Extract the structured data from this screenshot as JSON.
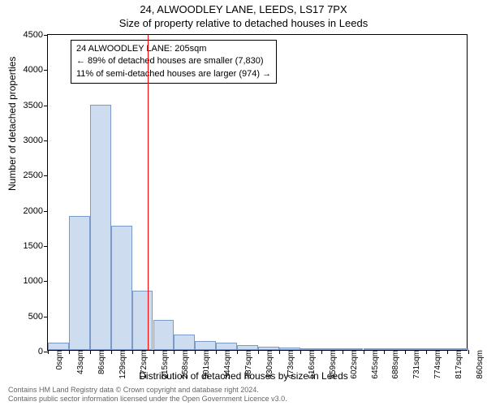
{
  "title_line1": "24, ALWOODLEY LANE, LEEDS, LS17 7PX",
  "title_line2": "Size of property relative to detached houses in Leeds",
  "y_axis_label": "Number of detached properties",
  "x_axis_label": "Distribution of detached houses by size in Leeds",
  "footer_line1": "Contains HM Land Registry data © Crown copyright and database right 2024.",
  "footer_line2": "Contains public sector information licensed under the Open Government Licence v3.0.",
  "info_box": {
    "line1": "24 ALWOODLEY LANE: 205sqm",
    "line2": "← 89% of detached houses are smaller (7,830)",
    "line3": "11% of semi-detached houses are larger (974) →"
  },
  "chart": {
    "type": "histogram",
    "ylim": [
      0,
      4500
    ],
    "ytick_step": 500,
    "y_ticks": [
      0,
      500,
      1000,
      1500,
      2000,
      2500,
      3000,
      3500,
      4000,
      4500
    ],
    "x_ticks": [
      "0sqm",
      "43sqm",
      "86sqm",
      "129sqm",
      "172sqm",
      "215sqm",
      "258sqm",
      "301sqm",
      "344sqm",
      "387sqm",
      "430sqm",
      "473sqm",
      "516sqm",
      "559sqm",
      "602sqm",
      "645sqm",
      "688sqm",
      "731sqm",
      "774sqm",
      "817sqm",
      "860sqm"
    ],
    "x_max": 860,
    "bars": [
      {
        "x_start": 0,
        "x_end": 43,
        "value": 100
      },
      {
        "x_start": 43,
        "x_end": 86,
        "value": 1900
      },
      {
        "x_start": 86,
        "x_end": 129,
        "value": 3480
      },
      {
        "x_start": 129,
        "x_end": 172,
        "value": 1770
      },
      {
        "x_start": 172,
        "x_end": 215,
        "value": 840
      },
      {
        "x_start": 215,
        "x_end": 258,
        "value": 430
      },
      {
        "x_start": 258,
        "x_end": 301,
        "value": 220
      },
      {
        "x_start": 301,
        "x_end": 344,
        "value": 130
      },
      {
        "x_start": 344,
        "x_end": 387,
        "value": 100
      },
      {
        "x_start": 387,
        "x_end": 430,
        "value": 70
      },
      {
        "x_start": 430,
        "x_end": 473,
        "value": 50
      },
      {
        "x_start": 473,
        "x_end": 516,
        "value": 30
      },
      {
        "x_start": 516,
        "x_end": 559,
        "value": 15
      },
      {
        "x_start": 559,
        "x_end": 602,
        "value": 10
      },
      {
        "x_start": 602,
        "x_end": 645,
        "value": 8
      },
      {
        "x_start": 645,
        "x_end": 688,
        "value": 6
      },
      {
        "x_start": 688,
        "x_end": 731,
        "value": 5
      },
      {
        "x_start": 731,
        "x_end": 774,
        "value": 3
      },
      {
        "x_start": 774,
        "x_end": 817,
        "value": 3
      },
      {
        "x_start": 817,
        "x_end": 860,
        "value": 2
      }
    ],
    "bar_fill": "#cedcf0",
    "bar_border": "#7a9bc9",
    "reference_line": {
      "x": 205,
      "color": "#ff0000",
      "width": 1
    },
    "background_color": "#ffffff",
    "axis_color": "#000000",
    "tick_fontsize": 11,
    "label_fontsize": 12,
    "title_fontsize": 13
  }
}
